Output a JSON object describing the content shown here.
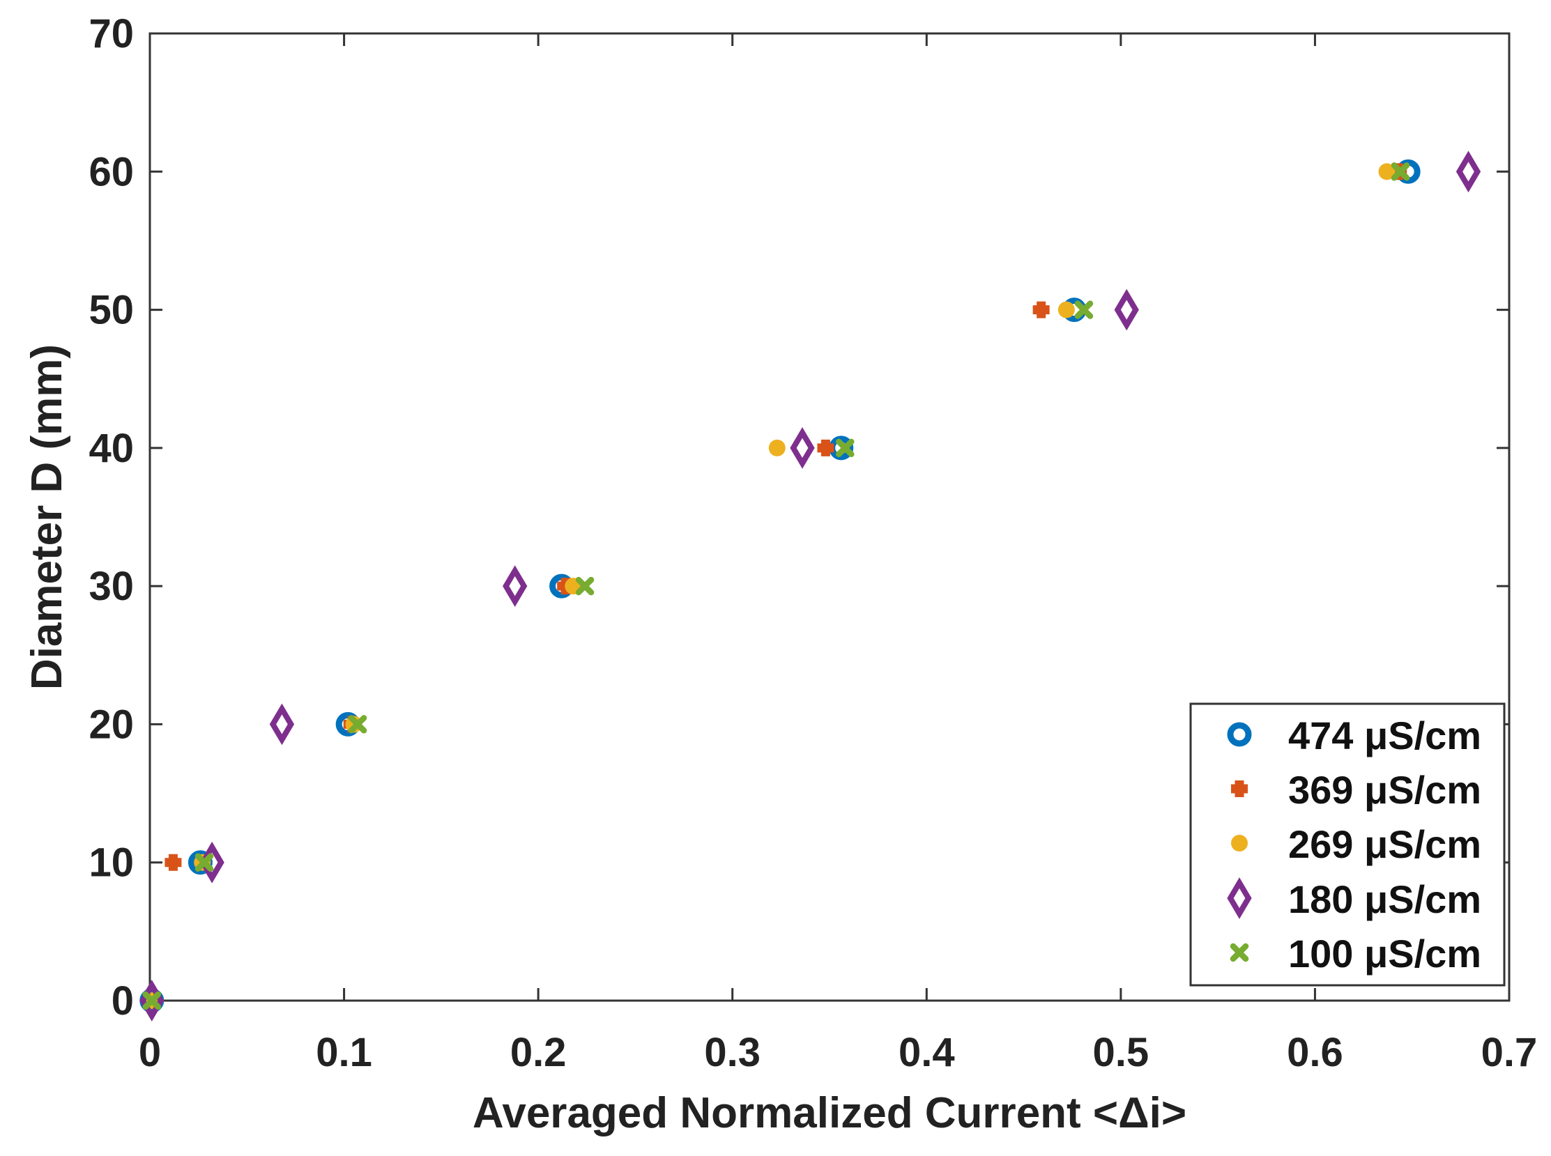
{
  "chart_data": {
    "type": "scatter",
    "title": "",
    "xlabel": "Averaged Normalized Current <Δi>",
    "ylabel": "Diameter D (mm)",
    "xlim": [
      0,
      0.7
    ],
    "ylim": [
      0,
      70
    ],
    "xticks": [
      0,
      0.1,
      0.2,
      0.3,
      0.4,
      0.5,
      0.6,
      0.7
    ],
    "yticks": [
      0,
      10,
      20,
      30,
      40,
      50,
      60,
      70
    ],
    "xtick_labels": [
      "0",
      "0.1",
      "0.2",
      "0.3",
      "0.4",
      "0.5",
      "0.6",
      "0.7"
    ],
    "ytick_labels": [
      "0",
      "10",
      "20",
      "30",
      "40",
      "50",
      "60",
      "70"
    ],
    "grid": false,
    "legend_position": "bottom-right",
    "series": [
      {
        "name": "474 μS/cm",
        "marker": "circle-open",
        "color": "#0072BD",
        "x": [
          0.001,
          0.026,
          0.102,
          0.212,
          0.356,
          0.476,
          0.648
        ],
        "y": [
          0,
          10,
          20,
          30,
          40,
          50,
          60
        ]
      },
      {
        "name": "369 μS/cm",
        "marker": "plus",
        "color": "#D95319",
        "x": [
          0.001,
          0.012,
          0.104,
          0.214,
          0.348,
          0.459,
          0.643
        ],
        "y": [
          0,
          10,
          20,
          30,
          40,
          50,
          60
        ]
      },
      {
        "name": "269 μS/cm",
        "marker": "circle-filled",
        "color": "#EDB120",
        "x": [
          0.001,
          0.027,
          0.105,
          0.218,
          0.323,
          0.472,
          0.637
        ],
        "y": [
          0,
          10,
          20,
          30,
          40,
          50,
          60
        ]
      },
      {
        "name": "180 μS/cm",
        "marker": "diamond-open",
        "color": "#7E2F8E",
        "x": [
          0.001,
          0.032,
          0.068,
          0.188,
          0.336,
          0.503,
          0.679
        ],
        "y": [
          0,
          10,
          20,
          30,
          40,
          50,
          60
        ]
      },
      {
        "name": "100 μS/cm",
        "marker": "x-filled",
        "color": "#77AC30",
        "x": [
          0.001,
          0.028,
          0.107,
          0.224,
          0.358,
          0.481,
          0.644
        ],
        "y": [
          0,
          10,
          20,
          30,
          40,
          50,
          60
        ]
      }
    ]
  }
}
